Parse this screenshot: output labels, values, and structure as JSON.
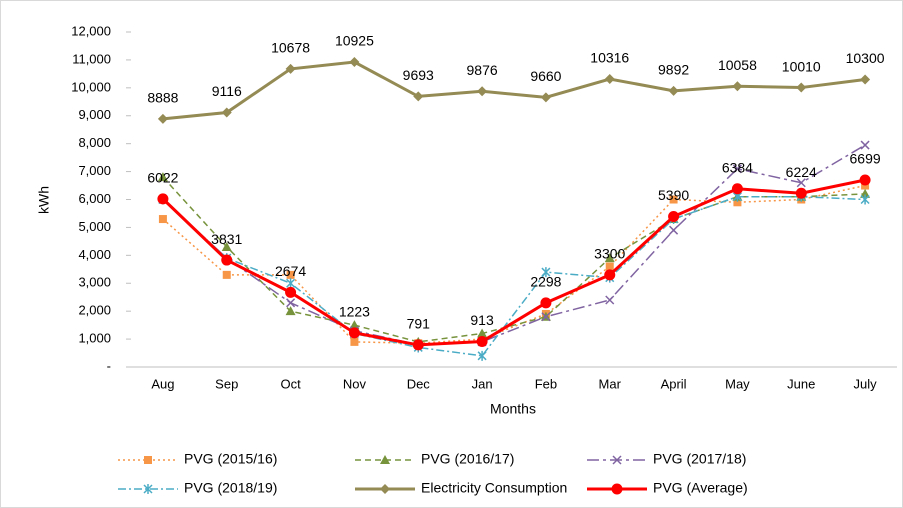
{
  "chart_data": {
    "type": "line",
    "xlabel": "Months",
    "ylabel": "kWh",
    "categories": [
      "Aug",
      "Sep",
      "Oct",
      "Nov",
      "Dec",
      "Jan",
      "Feb",
      "Mar",
      "April",
      "May",
      "June",
      "July"
    ],
    "ylim": [
      0,
      12000
    ],
    "yticks": [
      {
        "value": 0,
        "label": "-"
      },
      {
        "value": 1000,
        "label": "1,000"
      },
      {
        "value": 2000,
        "label": "2,000"
      },
      {
        "value": 3000,
        "label": "3,000"
      },
      {
        "value": 4000,
        "label": "4,000"
      },
      {
        "value": 5000,
        "label": "5,000"
      },
      {
        "value": 6000,
        "label": "6,000"
      },
      {
        "value": 7000,
        "label": "7,000"
      },
      {
        "value": 8000,
        "label": "8,000"
      },
      {
        "value": 9000,
        "label": "9,000"
      },
      {
        "value": 10000,
        "label": "10,000"
      },
      {
        "value": 11000,
        "label": "11,000"
      },
      {
        "value": 12000,
        "label": "12,000"
      }
    ],
    "legend": "bottom",
    "series": [
      {
        "name": "PVG (2015/16)",
        "color": "#F79646",
        "marker": "square",
        "dash": "dotted",
        "values": [
          5300,
          3300,
          3300,
          900,
          850,
          1000,
          1900,
          3600,
          6000,
          5900,
          6000,
          6500
        ]
      },
      {
        "name": "PVG (2016/17)",
        "color": "#77933C",
        "marker": "triangle",
        "dash": "dashed",
        "values": [
          6800,
          4300,
          2000,
          1500,
          900,
          1200,
          1800,
          3900,
          5300,
          6100,
          6100,
          6200
        ]
      },
      {
        "name": "PVG (2017/18)",
        "color": "#8064A2",
        "marker": "x",
        "dash": "longdash",
        "values": [
          6000,
          3900,
          2300,
          1300,
          800,
          900,
          1800,
          2400,
          4900,
          7100,
          6600,
          7950
        ]
      },
      {
        "name": "PVG (2018/19)",
        "color": "#4BACC6",
        "marker": "asterisk",
        "dash": "dashdot",
        "values": [
          6000,
          3900,
          3000,
          1200,
          700,
          400,
          3400,
          3200,
          5300,
          6100,
          6100,
          6000
        ]
      },
      {
        "name": "Electricity Consumption",
        "color": "#948A54",
        "marker": "diamond",
        "dash": "solid",
        "data_labels": true,
        "values": [
          8888,
          9116,
          10678,
          10925,
          9693,
          9876,
          9660,
          10316,
          9892,
          10058,
          10010,
          10300
        ]
      },
      {
        "name": "PVG (Average)",
        "color": "#FF0000",
        "marker": "circle",
        "dash": "solid",
        "data_labels": true,
        "values": [
          6022,
          3831,
          2674,
          1223,
          791,
          913,
          2298,
          3300,
          5390,
          6384,
          6224,
          6699
        ]
      }
    ]
  }
}
